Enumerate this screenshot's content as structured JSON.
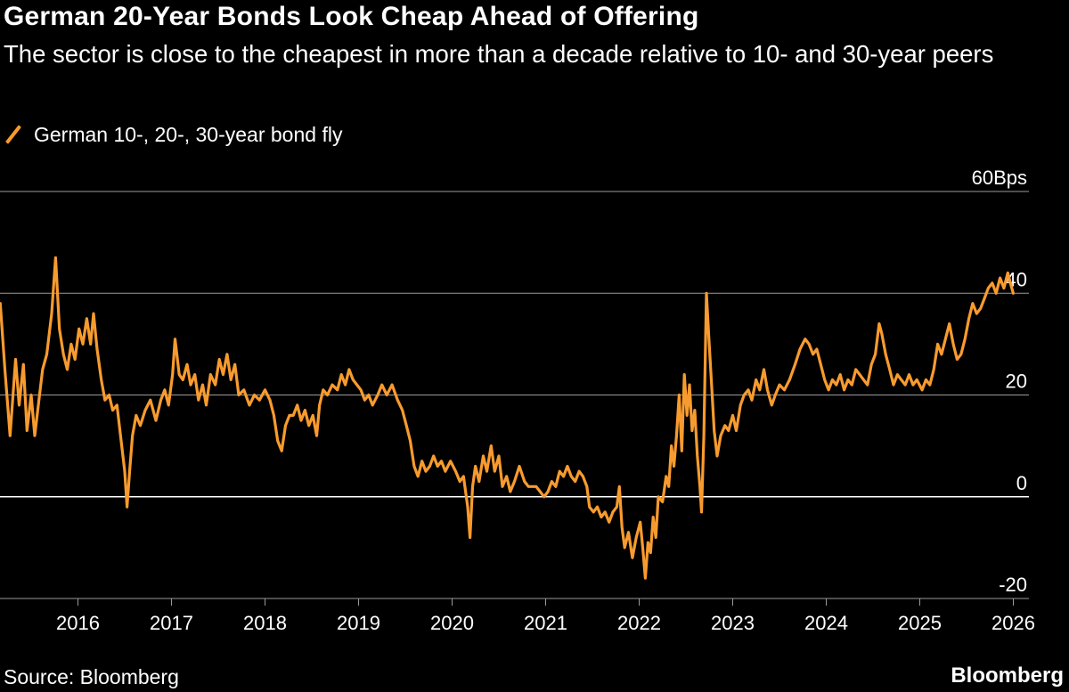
{
  "header": {
    "title": "German 20-Year Bonds Look Cheap Ahead of Offering",
    "subtitle": "The sector is close to the cheapest in more than a decade relative to 10- and 30-year peers"
  },
  "footer": {
    "source": "Source: Bloomberg",
    "brand": "Bloomberg"
  },
  "colors": {
    "background": "#000000",
    "series": "#f89b2e",
    "gridline": "#9a9a9a",
    "zero_line": "#ffffff",
    "text": "#ffffff"
  },
  "chart_data": {
    "type": "line",
    "title": "German 20-Year Bonds Look Cheap Ahead of Offering",
    "subtitle": "The sector is close to the cheapest in more than a decade relative to 10- and 30-year peers",
    "legend": "top-left",
    "grid": true,
    "xlabel": "",
    "ylabel": "",
    "ylim": [
      -20,
      60
    ],
    "xlim": [
      "2015-03",
      "2026-03"
    ],
    "y_ticks": [
      {
        "value": 60,
        "label": "60Bps"
      },
      {
        "value": 40,
        "label": "40"
      },
      {
        "value": 20,
        "label": "20"
      },
      {
        "value": 0,
        "label": "0"
      },
      {
        "value": -20,
        "label": "-20"
      }
    ],
    "x_ticks": [
      {
        "value": "2016",
        "label": "2016"
      },
      {
        "value": "2017",
        "label": "2017"
      },
      {
        "value": "2018",
        "label": "2018"
      },
      {
        "value": "2019",
        "label": "2019"
      },
      {
        "value": "2020",
        "label": "2020"
      },
      {
        "value": "2021",
        "label": "2021"
      },
      {
        "value": "2022",
        "label": "2022"
      },
      {
        "value": "2023",
        "label": "2023"
      },
      {
        "value": "2024",
        "label": "2024"
      },
      {
        "value": "2025",
        "label": "2025"
      },
      {
        "value": "2026",
        "label": "2026"
      }
    ],
    "series": [
      {
        "name": "German 10-, 20-, 30-year bond fly",
        "color": "#f89b2e",
        "points": [
          [
            "2015-03-02",
            38
          ],
          [
            "2015-03-20",
            25
          ],
          [
            "2015-04-10",
            12
          ],
          [
            "2015-05-01",
            27
          ],
          [
            "2015-05-15",
            18
          ],
          [
            "2015-06-01",
            26
          ],
          [
            "2015-06-15",
            13
          ],
          [
            "2015-07-01",
            20
          ],
          [
            "2015-07-15",
            12
          ],
          [
            "2015-08-01",
            19
          ],
          [
            "2015-08-15",
            25
          ],
          [
            "2015-09-01",
            28
          ],
          [
            "2015-09-20",
            36
          ],
          [
            "2015-10-05",
            47
          ],
          [
            "2015-10-20",
            33
          ],
          [
            "2015-11-05",
            28
          ],
          [
            "2015-11-20",
            25
          ],
          [
            "2015-12-05",
            30
          ],
          [
            "2015-12-20",
            27
          ],
          [
            "2016-01-05",
            33
          ],
          [
            "2016-01-20",
            30
          ],
          [
            "2016-02-05",
            35
          ],
          [
            "2016-02-20",
            30
          ],
          [
            "2016-03-01",
            36
          ],
          [
            "2016-03-15",
            29
          ],
          [
            "2016-04-01",
            23
          ],
          [
            "2016-04-15",
            19
          ],
          [
            "2016-05-01",
            20
          ],
          [
            "2016-05-15",
            17
          ],
          [
            "2016-06-01",
            18
          ],
          [
            "2016-06-15",
            12
          ],
          [
            "2016-07-01",
            5
          ],
          [
            "2016-07-10",
            -2
          ],
          [
            "2016-07-20",
            5
          ],
          [
            "2016-08-01",
            12
          ],
          [
            "2016-08-15",
            16
          ],
          [
            "2016-09-01",
            14
          ],
          [
            "2016-09-20",
            17
          ],
          [
            "2016-10-10",
            19
          ],
          [
            "2016-11-01",
            15
          ],
          [
            "2016-11-20",
            19
          ],
          [
            "2016-12-05",
            21
          ],
          [
            "2016-12-20",
            18
          ],
          [
            "2017-01-05",
            24
          ],
          [
            "2017-01-15",
            31
          ],
          [
            "2017-02-01",
            24
          ],
          [
            "2017-02-15",
            23
          ],
          [
            "2017-03-01",
            26
          ],
          [
            "2017-03-15",
            22
          ],
          [
            "2017-04-01",
            24
          ],
          [
            "2017-04-15",
            19
          ],
          [
            "2017-05-01",
            22
          ],
          [
            "2017-05-15",
            18
          ],
          [
            "2017-06-01",
            24
          ],
          [
            "2017-06-20",
            22
          ],
          [
            "2017-07-05",
            27
          ],
          [
            "2017-07-20",
            24
          ],
          [
            "2017-08-05",
            28
          ],
          [
            "2017-08-20",
            23
          ],
          [
            "2017-09-05",
            26
          ],
          [
            "2017-09-20",
            20
          ],
          [
            "2017-10-10",
            21
          ],
          [
            "2017-11-01",
            18
          ],
          [
            "2017-11-20",
            20
          ],
          [
            "2017-12-10",
            19
          ],
          [
            "2018-01-01",
            21
          ],
          [
            "2018-01-20",
            19
          ],
          [
            "2018-02-05",
            16
          ],
          [
            "2018-02-20",
            11
          ],
          [
            "2018-03-05",
            9
          ],
          [
            "2018-03-20",
            14
          ],
          [
            "2018-04-05",
            16
          ],
          [
            "2018-04-20",
            16
          ],
          [
            "2018-05-05",
            18
          ],
          [
            "2018-05-20",
            15
          ],
          [
            "2018-06-05",
            17
          ],
          [
            "2018-06-20",
            14
          ],
          [
            "2018-07-05",
            16
          ],
          [
            "2018-07-20",
            12
          ],
          [
            "2018-08-01",
            18
          ],
          [
            "2018-08-15",
            21
          ],
          [
            "2018-09-01",
            20
          ],
          [
            "2018-09-20",
            22
          ],
          [
            "2018-10-10",
            21
          ],
          [
            "2018-10-25",
            24
          ],
          [
            "2018-11-10",
            22
          ],
          [
            "2018-11-25",
            25
          ],
          [
            "2018-12-10",
            23
          ],
          [
            "2018-12-25",
            22
          ],
          [
            "2019-01-10",
            21
          ],
          [
            "2019-01-25",
            19
          ],
          [
            "2019-02-10",
            20
          ],
          [
            "2019-02-25",
            18
          ],
          [
            "2019-03-15",
            20
          ],
          [
            "2019-04-01",
            22
          ],
          [
            "2019-04-20",
            20
          ],
          [
            "2019-05-10",
            22
          ],
          [
            "2019-06-01",
            19
          ],
          [
            "2019-06-20",
            17
          ],
          [
            "2019-07-05",
            14
          ],
          [
            "2019-07-20",
            11
          ],
          [
            "2019-08-05",
            6
          ],
          [
            "2019-08-20",
            4
          ],
          [
            "2019-09-05",
            7
          ],
          [
            "2019-09-20",
            5
          ],
          [
            "2019-10-05",
            6
          ],
          [
            "2019-10-20",
            8
          ],
          [
            "2019-11-05",
            6
          ],
          [
            "2019-11-20",
            7
          ],
          [
            "2019-12-05",
            5
          ],
          [
            "2019-12-25",
            7
          ],
          [
            "2020-01-15",
            5
          ],
          [
            "2020-02-01",
            3
          ],
          [
            "2020-02-15",
            4
          ],
          [
            "2020-03-01",
            -2
          ],
          [
            "2020-03-10",
            -8
          ],
          [
            "2020-03-20",
            2
          ],
          [
            "2020-04-01",
            6
          ],
          [
            "2020-04-15",
            3
          ],
          [
            "2020-05-01",
            8
          ],
          [
            "2020-05-15",
            5
          ],
          [
            "2020-06-01",
            10
          ],
          [
            "2020-06-15",
            5
          ],
          [
            "2020-07-01",
            8
          ],
          [
            "2020-07-15",
            2
          ],
          [
            "2020-08-01",
            4
          ],
          [
            "2020-08-15",
            1
          ],
          [
            "2020-09-01",
            3
          ],
          [
            "2020-09-20",
            6
          ],
          [
            "2020-10-10",
            3
          ],
          [
            "2020-10-25",
            2
          ],
          [
            "2020-11-10",
            2
          ],
          [
            "2020-11-25",
            2
          ],
          [
            "2020-12-10",
            1
          ],
          [
            "2020-12-25",
            0
          ],
          [
            "2021-01-10",
            1
          ],
          [
            "2021-01-25",
            3
          ],
          [
            "2021-02-10",
            2
          ],
          [
            "2021-02-25",
            5
          ],
          [
            "2021-03-10",
            4
          ],
          [
            "2021-03-25",
            6
          ],
          [
            "2021-04-10",
            4
          ],
          [
            "2021-04-25",
            3
          ],
          [
            "2021-05-10",
            5
          ],
          [
            "2021-05-25",
            4
          ],
          [
            "2021-06-10",
            2
          ],
          [
            "2021-06-20",
            -2
          ],
          [
            "2021-07-05",
            -3
          ],
          [
            "2021-07-20",
            -2
          ],
          [
            "2021-08-05",
            -4
          ],
          [
            "2021-08-20",
            -3
          ],
          [
            "2021-09-05",
            -5
          ],
          [
            "2021-09-20",
            -3
          ],
          [
            "2021-10-05",
            -2
          ],
          [
            "2021-10-15",
            2
          ],
          [
            "2021-10-25",
            -6
          ],
          [
            "2021-11-05",
            -10
          ],
          [
            "2021-11-20",
            -7
          ],
          [
            "2021-12-05",
            -12
          ],
          [
            "2021-12-20",
            -8
          ],
          [
            "2022-01-05",
            -5
          ],
          [
            "2022-01-15",
            -10
          ],
          [
            "2022-01-25",
            -16
          ],
          [
            "2022-02-05",
            -9
          ],
          [
            "2022-02-15",
            -11
          ],
          [
            "2022-02-25",
            -4
          ],
          [
            "2022-03-05",
            -8
          ],
          [
            "2022-03-15",
            0
          ],
          [
            "2022-04-01",
            -1
          ],
          [
            "2022-04-15",
            4
          ],
          [
            "2022-04-25",
            2
          ],
          [
            "2022-05-05",
            10
          ],
          [
            "2022-05-15",
            6
          ],
          [
            "2022-05-25",
            12
          ],
          [
            "2022-06-05",
            20
          ],
          [
            "2022-06-15",
            9
          ],
          [
            "2022-06-25",
            24
          ],
          [
            "2022-07-05",
            16
          ],
          [
            "2022-07-15",
            22
          ],
          [
            "2022-07-25",
            13
          ],
          [
            "2022-08-05",
            17
          ],
          [
            "2022-08-15",
            8
          ],
          [
            "2022-08-25",
            2
          ],
          [
            "2022-09-01",
            -3
          ],
          [
            "2022-09-10",
            12
          ],
          [
            "2022-09-20",
            40
          ],
          [
            "2022-09-30",
            31
          ],
          [
            "2022-10-10",
            22
          ],
          [
            "2022-10-20",
            13
          ],
          [
            "2022-11-01",
            8
          ],
          [
            "2022-11-15",
            12
          ],
          [
            "2022-12-01",
            14
          ],
          [
            "2022-12-15",
            13
          ],
          [
            "2023-01-01",
            16
          ],
          [
            "2023-01-15",
            13
          ],
          [
            "2023-02-01",
            18
          ],
          [
            "2023-02-15",
            20
          ],
          [
            "2023-03-01",
            21
          ],
          [
            "2023-03-15",
            19
          ],
          [
            "2023-04-01",
            23
          ],
          [
            "2023-04-15",
            21
          ],
          [
            "2023-05-01",
            25
          ],
          [
            "2023-05-15",
            21
          ],
          [
            "2023-06-01",
            18
          ],
          [
            "2023-06-15",
            20
          ],
          [
            "2023-07-01",
            22
          ],
          [
            "2023-07-20",
            21
          ],
          [
            "2023-08-10",
            23
          ],
          [
            "2023-09-01",
            26
          ],
          [
            "2023-09-20",
            29
          ],
          [
            "2023-10-10",
            31
          ],
          [
            "2023-10-25",
            30
          ],
          [
            "2023-11-10",
            28
          ],
          [
            "2023-11-25",
            29
          ],
          [
            "2023-12-10",
            26
          ],
          [
            "2023-12-25",
            23
          ],
          [
            "2024-01-10",
            21
          ],
          [
            "2024-01-25",
            23
          ],
          [
            "2024-02-10",
            22
          ],
          [
            "2024-02-25",
            24
          ],
          [
            "2024-03-10",
            21
          ],
          [
            "2024-03-25",
            23
          ],
          [
            "2024-04-10",
            22
          ],
          [
            "2024-04-25",
            25
          ],
          [
            "2024-05-10",
            24
          ],
          [
            "2024-05-25",
            23
          ],
          [
            "2024-06-10",
            22
          ],
          [
            "2024-06-25",
            26
          ],
          [
            "2024-07-10",
            28
          ],
          [
            "2024-07-25",
            34
          ],
          [
            "2024-08-05",
            32
          ],
          [
            "2024-08-20",
            28
          ],
          [
            "2024-09-05",
            25
          ],
          [
            "2024-09-20",
            22
          ],
          [
            "2024-10-05",
            24
          ],
          [
            "2024-10-20",
            23
          ],
          [
            "2024-11-05",
            22
          ],
          [
            "2024-11-20",
            24
          ],
          [
            "2024-12-05",
            22
          ],
          [
            "2024-12-20",
            23
          ],
          [
            "2025-01-10",
            21
          ],
          [
            "2025-01-25",
            23
          ],
          [
            "2025-02-10",
            22
          ],
          [
            "2025-02-25",
            25
          ],
          [
            "2025-03-10",
            30
          ],
          [
            "2025-03-25",
            28
          ],
          [
            "2025-04-10",
            31
          ],
          [
            "2025-04-25",
            34
          ],
          [
            "2025-05-10",
            30
          ],
          [
            "2025-05-25",
            27
          ],
          [
            "2025-06-10",
            28
          ],
          [
            "2025-06-25",
            31
          ],
          [
            "2025-07-10",
            35
          ],
          [
            "2025-07-25",
            38
          ],
          [
            "2025-08-10",
            36
          ],
          [
            "2025-08-25",
            37
          ],
          [
            "2025-09-10",
            39
          ],
          [
            "2025-09-25",
            41
          ],
          [
            "2025-10-10",
            42
          ],
          [
            "2025-10-25",
            40
          ],
          [
            "2025-11-10",
            43
          ],
          [
            "2025-11-25",
            41
          ],
          [
            "2025-12-10",
            44
          ],
          [
            "2025-12-20",
            42
          ],
          [
            "2025-12-31",
            40
          ]
        ]
      }
    ]
  }
}
